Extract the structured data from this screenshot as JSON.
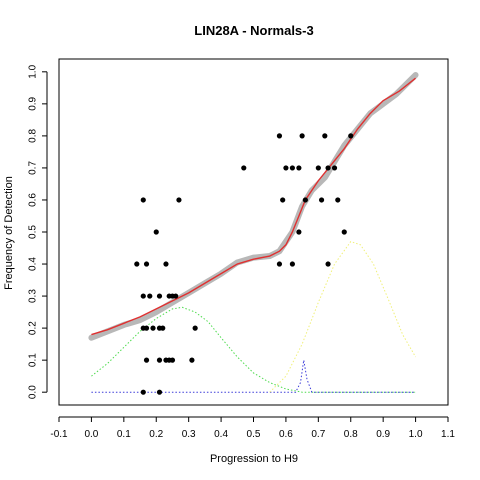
{
  "chart_data": {
    "type": "scatter",
    "title": "LIN28A - Normals-3",
    "xlabel": "Progression to H9",
    "ylabel": "Frequency of Detection",
    "xlim": [
      -0.1,
      1.1
    ],
    "ylim": [
      0.0,
      1.0
    ],
    "x_ticks": [
      "-0.1",
      "0.0",
      "0.1",
      "0.2",
      "0.3",
      "0.4",
      "0.5",
      "0.6",
      "0.7",
      "0.8",
      "0.9",
      "1.0",
      "1.1"
    ],
    "y_ticks": [
      "0.0",
      "0.1",
      "0.2",
      "0.3",
      "0.4",
      "0.5",
      "0.6",
      "0.7",
      "0.8",
      "0.9",
      "1.0"
    ],
    "grid": false,
    "legend": "none",
    "series": [
      {
        "kind": "points",
        "color": "#000000",
        "points": [
          [
            0.16,
            0.6
          ],
          [
            0.27,
            0.6
          ],
          [
            0.2,
            0.5
          ],
          [
            0.47,
            0.7
          ],
          [
            0.58,
            0.8
          ],
          [
            0.65,
            0.8
          ],
          [
            0.72,
            0.8
          ],
          [
            0.8,
            0.8
          ],
          [
            0.6,
            0.7
          ],
          [
            0.62,
            0.7
          ],
          [
            0.64,
            0.7
          ],
          [
            0.7,
            0.7
          ],
          [
            0.73,
            0.7
          ],
          [
            0.75,
            0.7
          ],
          [
            0.59,
            0.6
          ],
          [
            0.66,
            0.6
          ],
          [
            0.71,
            0.6
          ],
          [
            0.76,
            0.6
          ],
          [
            0.58,
            0.4
          ],
          [
            0.62,
            0.4
          ],
          [
            0.73,
            0.4
          ],
          [
            0.64,
            0.5
          ],
          [
            0.78,
            0.5
          ],
          [
            0.14,
            0.4
          ],
          [
            0.17,
            0.4
          ],
          [
            0.23,
            0.4
          ],
          [
            0.16,
            0.3
          ],
          [
            0.18,
            0.3
          ],
          [
            0.21,
            0.3
          ],
          [
            0.24,
            0.3
          ],
          [
            0.25,
            0.3
          ],
          [
            0.26,
            0.3
          ],
          [
            0.16,
            0.2
          ],
          [
            0.17,
            0.2
          ],
          [
            0.19,
            0.2
          ],
          [
            0.21,
            0.2
          ],
          [
            0.22,
            0.2
          ],
          [
            0.32,
            0.2
          ],
          [
            0.17,
            0.1
          ],
          [
            0.21,
            0.1
          ],
          [
            0.23,
            0.1
          ],
          [
            0.24,
            0.1
          ],
          [
            0.25,
            0.1
          ],
          [
            0.31,
            0.1
          ],
          [
            0.16,
            0.0
          ],
          [
            0.21,
            0.0
          ]
        ]
      },
      {
        "kind": "smoothed-band",
        "color": "#b8b8b8",
        "points": [
          [
            0.0,
            0.17
          ],
          [
            0.05,
            0.19
          ],
          [
            0.1,
            0.21
          ],
          [
            0.15,
            0.225
          ],
          [
            0.2,
            0.25
          ],
          [
            0.25,
            0.28
          ],
          [
            0.3,
            0.31
          ],
          [
            0.35,
            0.34
          ],
          [
            0.4,
            0.37
          ],
          [
            0.45,
            0.405
          ],
          [
            0.5,
            0.42
          ],
          [
            0.55,
            0.425
          ],
          [
            0.58,
            0.44
          ],
          [
            0.6,
            0.47
          ],
          [
            0.62,
            0.5
          ],
          [
            0.65,
            0.58
          ],
          [
            0.68,
            0.63
          ],
          [
            0.72,
            0.67
          ],
          [
            0.75,
            0.72
          ],
          [
            0.78,
            0.77
          ],
          [
            0.82,
            0.82
          ],
          [
            0.86,
            0.87
          ],
          [
            0.9,
            0.9
          ],
          [
            0.94,
            0.93
          ],
          [
            0.97,
            0.96
          ],
          [
            1.0,
            0.99
          ]
        ]
      },
      {
        "kind": "line",
        "color": "#e03030",
        "points": [
          [
            0.0,
            0.18
          ],
          [
            0.05,
            0.195
          ],
          [
            0.1,
            0.215
          ],
          [
            0.15,
            0.235
          ],
          [
            0.2,
            0.26
          ],
          [
            0.25,
            0.285
          ],
          [
            0.3,
            0.31
          ],
          [
            0.35,
            0.34
          ],
          [
            0.4,
            0.37
          ],
          [
            0.45,
            0.4
          ],
          [
            0.5,
            0.415
          ],
          [
            0.55,
            0.425
          ],
          [
            0.58,
            0.44
          ],
          [
            0.6,
            0.46
          ],
          [
            0.62,
            0.5
          ],
          [
            0.64,
            0.55
          ],
          [
            0.66,
            0.6
          ],
          [
            0.7,
            0.66
          ],
          [
            0.74,
            0.71
          ],
          [
            0.78,
            0.76
          ],
          [
            0.82,
            0.82
          ],
          [
            0.86,
            0.87
          ],
          [
            0.9,
            0.91
          ],
          [
            0.95,
            0.94
          ],
          [
            1.0,
            0.98
          ]
        ]
      },
      {
        "kind": "dotted-line",
        "color": "#4ddb4d",
        "points": [
          [
            0.0,
            0.05
          ],
          [
            0.05,
            0.09
          ],
          [
            0.1,
            0.14
          ],
          [
            0.15,
            0.19
          ],
          [
            0.2,
            0.23
          ],
          [
            0.25,
            0.26
          ],
          [
            0.28,
            0.265
          ],
          [
            0.32,
            0.25
          ],
          [
            0.36,
            0.22
          ],
          [
            0.4,
            0.17
          ],
          [
            0.45,
            0.11
          ],
          [
            0.5,
            0.06
          ],
          [
            0.55,
            0.03
          ],
          [
            0.6,
            0.01
          ],
          [
            0.65,
            0.0
          ],
          [
            1.0,
            0.0
          ]
        ]
      },
      {
        "kind": "dotted-line",
        "color": "#3b3bd9",
        "points": [
          [
            0.0,
            0.0
          ],
          [
            0.63,
            0.0
          ],
          [
            0.645,
            0.03
          ],
          [
            0.655,
            0.1
          ],
          [
            0.665,
            0.04
          ],
          [
            0.68,
            0.0
          ],
          [
            1.0,
            0.0
          ]
        ]
      },
      {
        "kind": "dotted-line",
        "color": "#f0f078",
        "points": [
          [
            0.55,
            0.0
          ],
          [
            0.6,
            0.05
          ],
          [
            0.65,
            0.15
          ],
          [
            0.7,
            0.28
          ],
          [
            0.75,
            0.4
          ],
          [
            0.8,
            0.47
          ],
          [
            0.83,
            0.46
          ],
          [
            0.87,
            0.4
          ],
          [
            0.92,
            0.28
          ],
          [
            0.96,
            0.18
          ],
          [
            1.0,
            0.11
          ]
        ]
      }
    ]
  }
}
